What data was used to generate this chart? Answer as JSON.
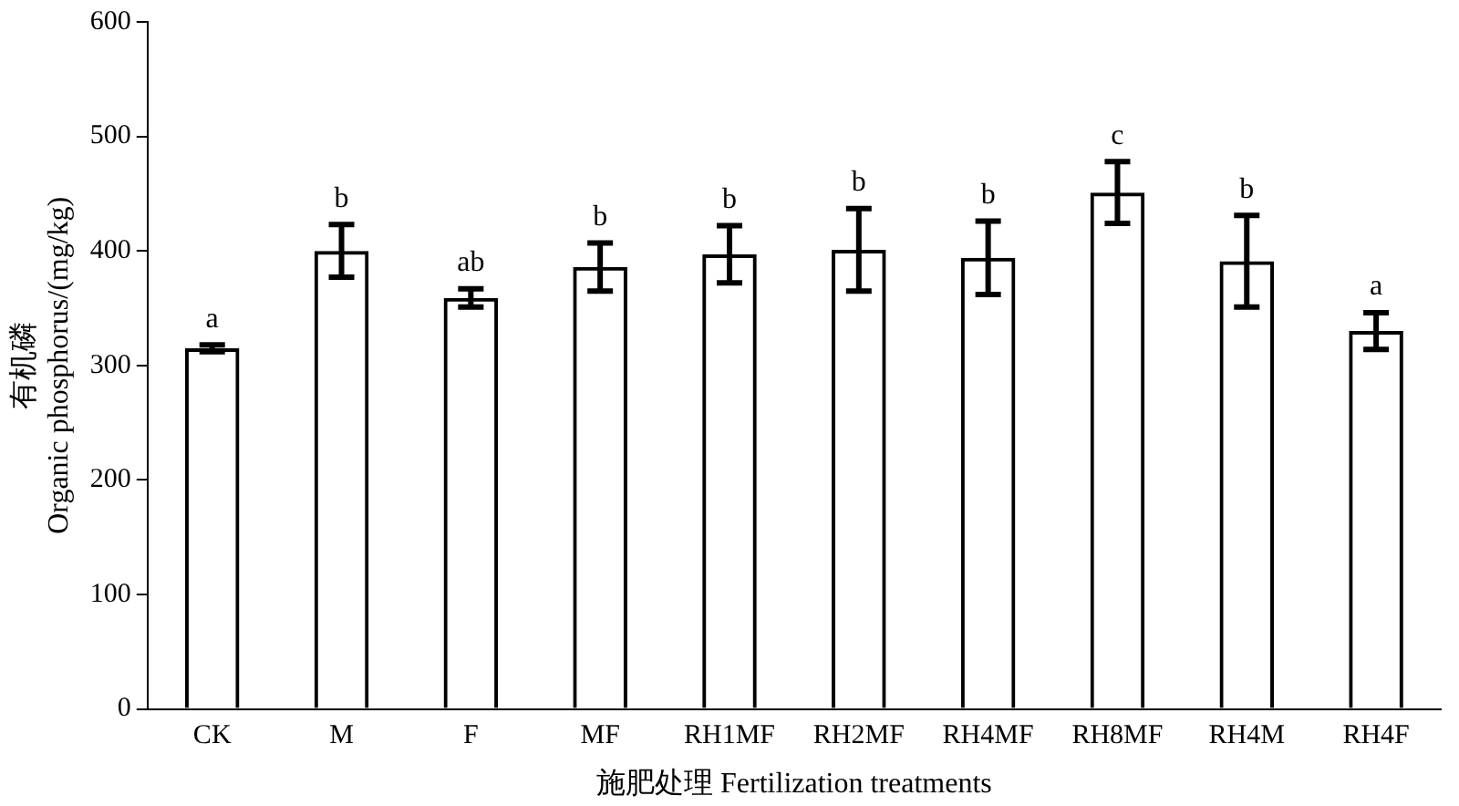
{
  "chart_data": {
    "type": "bar",
    "xlabel": "施肥处理 Fertilization treatments",
    "ylabel": "有机磷\nOrganic phosphorus/(mg/kg)",
    "categories": [
      "CK",
      "M",
      "F",
      "MF",
      "RH1MF",
      "RH2MF",
      "RH4MF",
      "RH8MF",
      "RH4M",
      "RH4F"
    ],
    "values": [
      315,
      400,
      359,
      386,
      397,
      401,
      394,
      451,
      391,
      330
    ],
    "errors": [
      3,
      23,
      8,
      21,
      25,
      36,
      32,
      27,
      40,
      16
    ],
    "color": "#000000",
    "ylim": [
      0,
      600
    ],
    "yticks": [
      0,
      100,
      200,
      300,
      400,
      500,
      600
    ],
    "grid": false,
    "legend": false,
    "annotations": [
      {
        "text": "a",
        "x": "CK",
        "y": 318
      },
      {
        "text": "b",
        "x": "M",
        "y": 423
      },
      {
        "text": "ab",
        "x": "F",
        "y": 367
      },
      {
        "text": "b",
        "x": "MF",
        "y": 407
      },
      {
        "text": "b",
        "x": "RH1MF",
        "y": 422
      },
      {
        "text": "b",
        "x": "RH2MF",
        "y": 437
      },
      {
        "text": "b",
        "x": "RH4MF",
        "y": 426
      },
      {
        "text": "c",
        "x": "RH8MF",
        "y": 478
      },
      {
        "text": "b",
        "x": "RH4M",
        "y": 431
      },
      {
        "text": "a",
        "x": "RH4F",
        "y": 346
      }
    ]
  }
}
